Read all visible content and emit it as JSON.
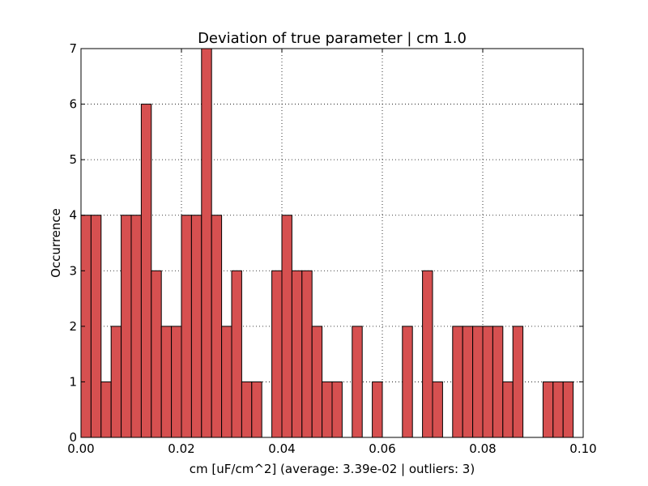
{
  "chart_data": {
    "type": "bar",
    "title": "Deviation of true parameter | cm 1.0",
    "xlabel": "cm [uF/cm^2] (average: 3.39e-02 | outliers: 3)",
    "ylabel": "Occurrence",
    "xlim": [
      0.0,
      0.1
    ],
    "ylim": [
      0,
      7
    ],
    "xticks": [
      "0.00",
      "0.02",
      "0.04",
      "0.06",
      "0.08",
      "0.10"
    ],
    "yticks": [
      "0",
      "1",
      "2",
      "3",
      "4",
      "5",
      "6",
      "7"
    ],
    "grid": true,
    "bar_color": "#d65050",
    "bin_width": 0.002,
    "bins": [
      0.0,
      0.002,
      0.004,
      0.006,
      0.008,
      0.01,
      0.012,
      0.014,
      0.016,
      0.018,
      0.02,
      0.022,
      0.024,
      0.026,
      0.028,
      0.03,
      0.032,
      0.034,
      0.036,
      0.038,
      0.04,
      0.042,
      0.044,
      0.046,
      0.048,
      0.05,
      0.052,
      0.054,
      0.056,
      0.058,
      0.06,
      0.062,
      0.064,
      0.066,
      0.068,
      0.07,
      0.072,
      0.074,
      0.076,
      0.078,
      0.08,
      0.082,
      0.084,
      0.086,
      0.088,
      0.09,
      0.092,
      0.094,
      0.096
    ],
    "values": [
      4,
      4,
      1,
      2,
      4,
      4,
      6,
      3,
      2,
      2,
      4,
      4,
      7,
      4,
      2,
      3,
      1,
      1,
      0,
      3,
      4,
      3,
      3,
      2,
      1,
      1,
      0,
      2,
      0,
      1,
      0,
      0,
      2,
      0,
      3,
      1,
      0,
      2,
      2,
      2,
      2,
      2,
      1,
      2,
      0,
      0,
      1,
      1,
      1
    ]
  }
}
